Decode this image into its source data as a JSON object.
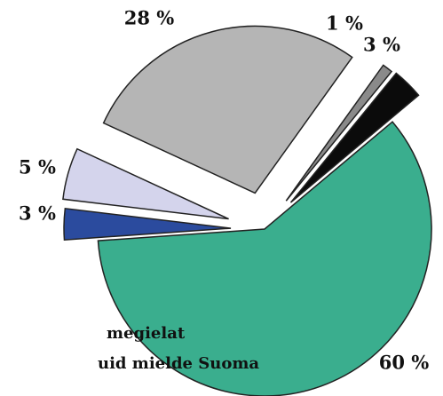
{
  "chart_data": {
    "type": "pie",
    "categories": [
      null,
      null,
      null,
      null,
      null,
      null
    ],
    "values": [
      60,
      3,
      5,
      28,
      1,
      3
    ],
    "value_labels": [
      "60 %",
      "3 %",
      "5 %",
      "28 %",
      "1 %",
      "3 %"
    ],
    "colors": [
      "#3aae8e",
      "#2b4b9e",
      "#d4d4ec",
      "#b5b5b5",
      "#8a8a8a",
      "#0b0b0b"
    ],
    "annotations": [
      "megielat",
      "uid mielde Suoma"
    ]
  }
}
